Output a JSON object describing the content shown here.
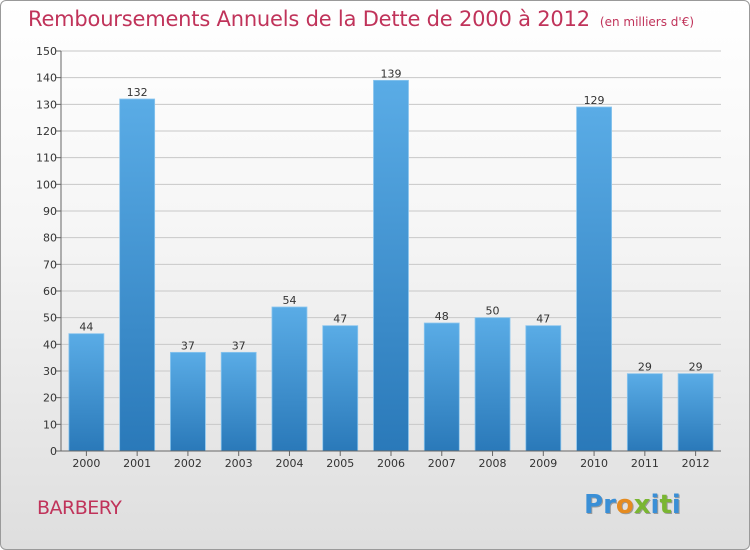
{
  "header": {
    "title": "Remboursements Annuels de la Dette de 2000 à 2012",
    "unit": "(en milliers d'€)"
  },
  "footer": {
    "commune": "BARBERY",
    "logo_letters": [
      "P",
      "r",
      "o",
      "x",
      "i",
      "t",
      "i"
    ],
    "logo_colors": [
      "#3a8fd6",
      "#3a8fd6",
      "#e58b20",
      "#7ab632",
      "#3a8fd6",
      "#7ab632",
      "#3a8fd6"
    ]
  },
  "colors": {
    "bar_light": "#5aace6",
    "bar_dark": "#2a79b9",
    "title": "#c0335a",
    "grid": "#c8c8c8"
  },
  "chart_data": {
    "type": "bar",
    "title": "Remboursements Annuels de la Dette de 2000 à 2012",
    "subtitle": "(en milliers d'€)",
    "xlabel": "",
    "ylabel": "",
    "categories": [
      "2000",
      "2001",
      "2002",
      "2003",
      "2004",
      "2005",
      "2006",
      "2007",
      "2008",
      "2009",
      "2010",
      "2011",
      "2012"
    ],
    "values": [
      44,
      132,
      37,
      37,
      54,
      47,
      139,
      48,
      50,
      47,
      129,
      29,
      29
    ],
    "ylim": [
      0,
      150
    ],
    "yticks": [
      0,
      10,
      20,
      30,
      40,
      50,
      60,
      70,
      80,
      90,
      100,
      110,
      120,
      130,
      140,
      150
    ],
    "grid": true,
    "legend": "none"
  }
}
